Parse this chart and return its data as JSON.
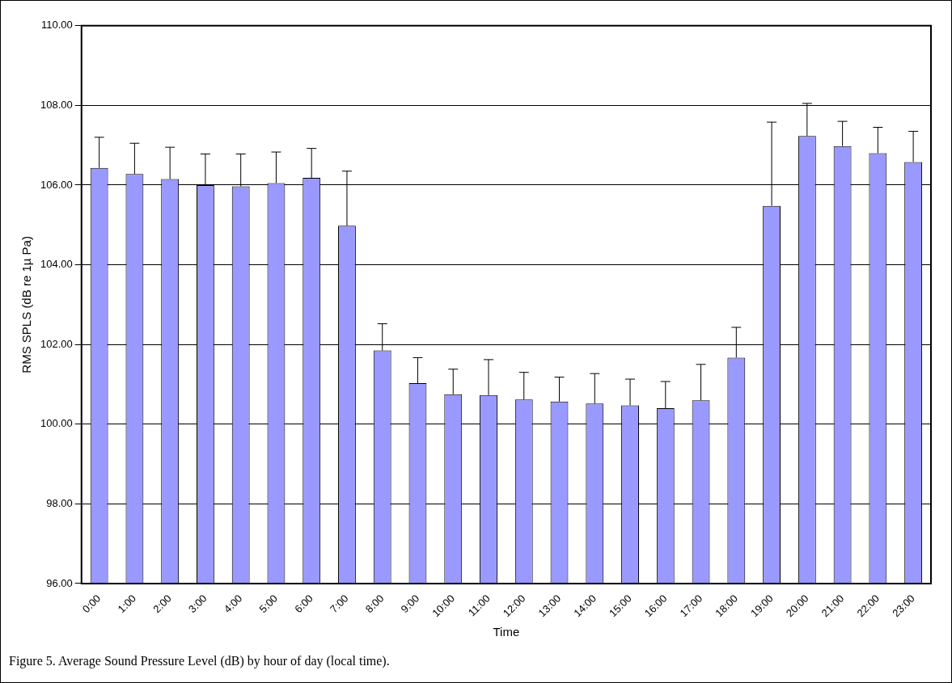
{
  "chart_data": {
    "type": "bar",
    "xlabel": "Time",
    "ylabel": "RMS SPLS (dB re 1µ Pa)",
    "categories": [
      "0:00",
      "1:00",
      "2:00",
      "3:00",
      "4:00",
      "5:00",
      "6:00",
      "7:00",
      "8:00",
      "9:00",
      "10:00",
      "11:00",
      "12:00",
      "13:00",
      "14:00",
      "15:00",
      "16:00",
      "17:00",
      "18:00",
      "19:00",
      "20:00",
      "21:00",
      "22:00",
      "23:00"
    ],
    "values": [
      106.43,
      106.28,
      106.15,
      106.0,
      105.97,
      106.05,
      106.18,
      104.98,
      101.85,
      101.03,
      100.75,
      100.73,
      100.62,
      100.57,
      100.52,
      100.47,
      100.4,
      100.6,
      101.67,
      105.48,
      107.23,
      106.98,
      106.8,
      106.58
    ],
    "errors": [
      [
        106.43,
        107.2
      ],
      [
        106.28,
        107.05
      ],
      [
        106.15,
        106.95
      ],
      [
        106.0,
        106.78
      ],
      [
        105.97,
        106.78
      ],
      [
        106.05,
        106.83
      ],
      [
        106.18,
        106.92
      ],
      [
        104.98,
        106.35
      ],
      [
        101.85,
        102.52
      ],
      [
        101.03,
        101.67
      ],
      [
        100.75,
        101.38
      ],
      [
        100.73,
        101.62
      ],
      [
        100.62,
        101.3
      ],
      [
        100.57,
        101.18
      ],
      [
        100.52,
        101.27
      ],
      [
        100.47,
        101.13
      ],
      [
        100.4,
        101.07
      ],
      [
        100.6,
        101.5
      ],
      [
        101.67,
        102.43
      ],
      [
        105.48,
        107.58
      ],
      [
        107.23,
        108.05
      ],
      [
        106.98,
        107.6
      ],
      [
        106.8,
        107.45
      ],
      [
        106.58,
        107.35
      ]
    ],
    "color": "#9999ff",
    "ylim": [
      96,
      110
    ],
    "yticks": [
      {
        "value": 96,
        "label": "96.00"
      },
      {
        "value": 98,
        "label": "98.00"
      },
      {
        "value": 100,
        "label": "100.00"
      },
      {
        "value": 102,
        "label": "102.00"
      },
      {
        "value": 104,
        "label": "104.00"
      },
      {
        "value": 106,
        "label": "106.00"
      },
      {
        "value": 108,
        "label": "108.00"
      },
      {
        "value": 110,
        "label": "110.00"
      }
    ],
    "grid": "y",
    "legend": false,
    "annotations": [
      "Figure 5.  Average Sound Pressure Level (dB) by hour of day (local time)."
    ]
  }
}
